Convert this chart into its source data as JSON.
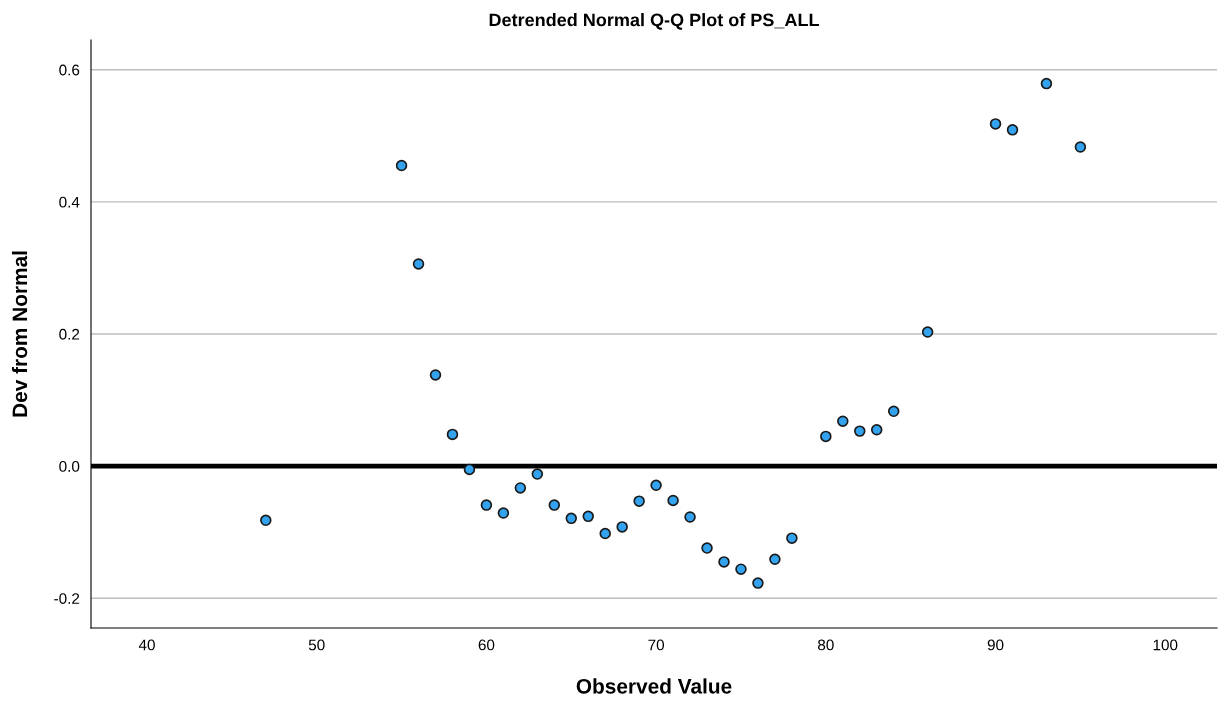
{
  "chart_data": {
    "type": "scatter",
    "title": "Detrended Normal Q-Q Plot of PS_ALL",
    "xlabel": "Observed Value",
    "ylabel": "Dev from Normal",
    "x": [
      47,
      55,
      56,
      57,
      58,
      59,
      60,
      61,
      62,
      63,
      64,
      65,
      66,
      67,
      68,
      69,
      70,
      71,
      72,
      73,
      74,
      75,
      76,
      77,
      78,
      80,
      81,
      82,
      83,
      84,
      86,
      90,
      91,
      93,
      95
    ],
    "series": [
      {
        "color": "#33a3f0",
        "values": [
          -0.082,
          0.455,
          0.306,
          0.138,
          0.048,
          -0.005,
          -0.059,
          -0.071,
          -0.033,
          -0.012,
          -0.059,
          -0.079,
          -0.076,
          -0.102,
          -0.092,
          -0.053,
          -0.029,
          -0.052,
          -0.077,
          -0.124,
          -0.145,
          -0.156,
          -0.177,
          -0.141,
          -0.109,
          0.045,
          0.068,
          0.053,
          0.055,
          0.083,
          0.203,
          0.518,
          0.509,
          0.579,
          0.483
        ]
      }
    ],
    "xlim": [
      36.7,
      103.05
    ],
    "xticks": [
      40,
      50,
      60,
      70,
      80,
      90,
      100
    ],
    "ylim": [
      -0.245,
      0.645
    ],
    "yticks": [
      {
        "value": -0.2,
        "label": "-0.2"
      },
      {
        "value": 0.0,
        "label": "0.0"
      },
      0.2,
      0.4,
      0.6
    ],
    "ref_lines": [
      {
        "axis": "y",
        "value": 0,
        "color": "#000000",
        "line_style": "solid"
      }
    ],
    "grid": "y",
    "marker": "circle"
  }
}
